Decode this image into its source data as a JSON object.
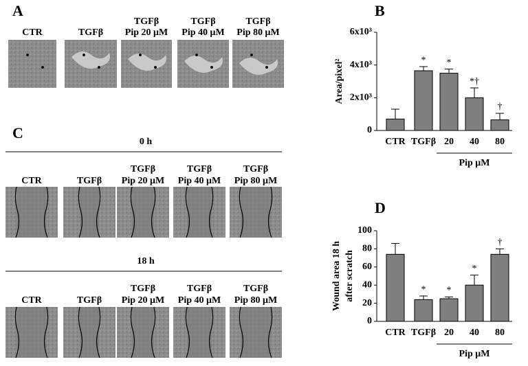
{
  "panel_a": {
    "label": "A",
    "images": [
      [
        "CTR"
      ],
      [
        "TGFβ"
      ],
      [
        "TGFβ",
        "Pip 20 μM"
      ],
      [
        "TGFβ",
        "Pip 40 μM"
      ],
      [
        "TGFβ",
        "Pip 80 μM"
      ]
    ]
  },
  "panel_c": {
    "label": "C",
    "rows": [
      {
        "time": "0 h",
        "images": [
          [
            "CTR"
          ],
          [
            "TGFβ"
          ],
          [
            "TGFβ",
            "Pip 20 μM"
          ],
          [
            "TGFβ",
            "Pip 40 μM"
          ],
          [
            "TGFβ",
            "Pip 80 μM"
          ]
        ]
      },
      {
        "time": "18 h",
        "images": [
          [
            "CTR"
          ],
          [
            "TGFβ"
          ],
          [
            "TGFβ",
            "Pip 20 μM"
          ],
          [
            "TGFβ",
            "Pip 40 μM"
          ],
          [
            "TGFβ",
            "Pip 80 μM"
          ]
        ]
      }
    ]
  },
  "chart_data": [
    {
      "type": "bar",
      "panel": "B",
      "ylabel": [
        "Area/pixel²"
      ],
      "categories": [
        "CTR",
        "TGFβ",
        "20",
        "40",
        "80"
      ],
      "group_label": "Pip μM",
      "values": [
        700,
        3650,
        3500,
        2000,
        650
      ],
      "errors": [
        600,
        250,
        250,
        600,
        400
      ],
      "annotations": [
        null,
        "*",
        "*",
        "*†",
        "†"
      ],
      "color": "#7f7f7f",
      "ylim": [
        0,
        6000
      ],
      "yticks": [
        0,
        {
          "value": 2000,
          "label": "2x10³"
        },
        {
          "value": 4000,
          "label": "4x10³"
        },
        {
          "value": 6000,
          "label": "6x10³"
        }
      ]
    },
    {
      "type": "bar",
      "panel": "D",
      "ylabel": [
        "Wound area 18 h",
        "after scratch"
      ],
      "categories": [
        "CTR",
        "TGFβ",
        "20",
        "40",
        "80"
      ],
      "group_label": "Pip μM",
      "values": [
        74,
        24,
        25,
        40,
        74
      ],
      "errors": [
        12,
        4,
        2,
        11,
        6
      ],
      "annotations": [
        null,
        "*",
        "*",
        "*",
        "†"
      ],
      "color": "#7f7f7f",
      "ylim": [
        0,
        100
      ],
      "yticks": [
        0,
        20,
        40,
        60,
        80,
        100
      ]
    }
  ]
}
